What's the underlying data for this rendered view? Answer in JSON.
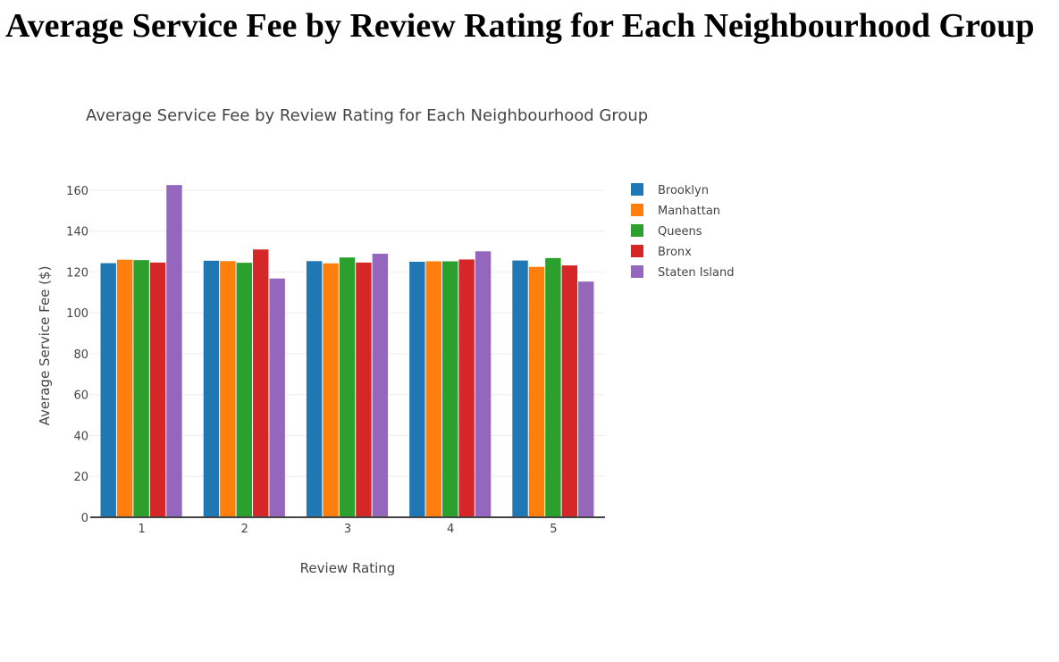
{
  "page": {
    "heading": "Average Service Fee by Review Rating for Each Neighbourhood Group"
  },
  "chart_data": {
    "type": "bar",
    "title": "Average Service Fee by Review Rating for Each Neighbourhood Group",
    "xlabel": "Review Rating",
    "ylabel": "Average Service Fee ($)",
    "categories": [
      "1",
      "2",
      "3",
      "4",
      "5"
    ],
    "ylim": [
      0,
      170
    ],
    "yticks": [
      0,
      20,
      40,
      60,
      80,
      100,
      120,
      140,
      160
    ],
    "grid": true,
    "legend_position": "top-right",
    "series": [
      {
        "name": "Brooklyn",
        "color": "#1f77b4",
        "values": [
          124.3,
          125.5,
          125.3,
          125.0,
          125.6
        ]
      },
      {
        "name": "Manhattan",
        "color": "#ff7f0e",
        "values": [
          126.0,
          125.3,
          124.2,
          125.2,
          122.5
        ]
      },
      {
        "name": "Queens",
        "color": "#2ca02c",
        "values": [
          125.8,
          124.5,
          127.1,
          125.2,
          126.8
        ]
      },
      {
        "name": "Bronx",
        "color": "#d62728",
        "values": [
          124.6,
          131.0,
          124.6,
          126.1,
          123.2
        ]
      },
      {
        "name": "Staten Island",
        "color": "#9467bd",
        "values": [
          162.5,
          116.8,
          128.9,
          130.1,
          115.3
        ]
      }
    ]
  }
}
